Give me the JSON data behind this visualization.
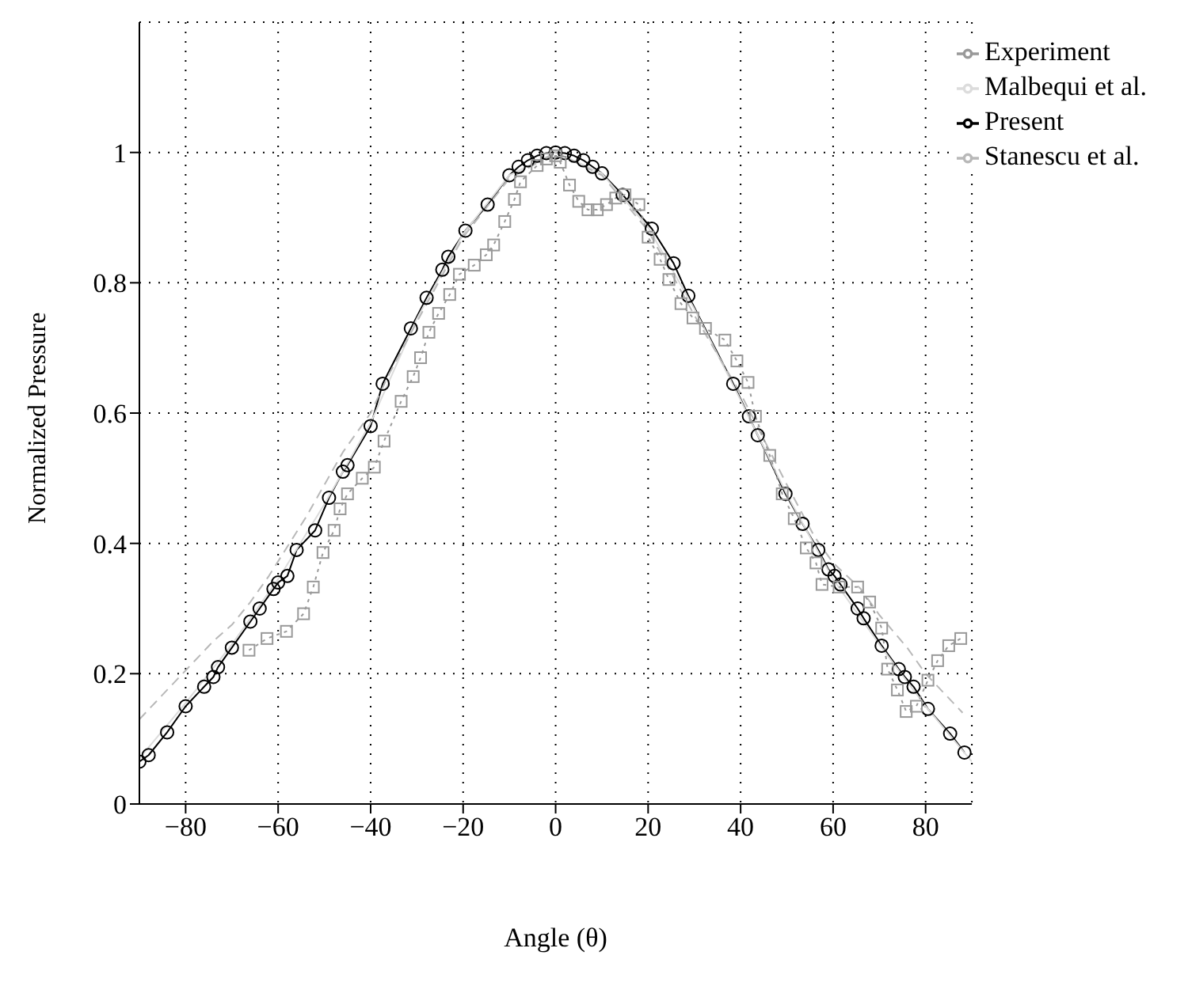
{
  "chart_data": {
    "type": "line",
    "xlabel": "Angle (θ)",
    "ylabel": "Normalized Pressure",
    "xlim": [
      -90,
      90
    ],
    "ylim": [
      0,
      1.2
    ],
    "xticks": [
      -80,
      -60,
      -40,
      -20,
      0,
      20,
      40,
      60,
      80
    ],
    "yticks": [
      0,
      0.2,
      0.4,
      0.6,
      0.8,
      1
    ],
    "grid": true,
    "legend": "top right",
    "series": [
      {
        "name": "Present",
        "color": "#000000",
        "marker": "circle",
        "line_style": "solid",
        "x": [
          -90,
          -88,
          -84,
          -80,
          -76,
          -74,
          -73,
          -70,
          -66,
          -64,
          -61,
          -60,
          -58,
          -56,
          -52,
          -49,
          -46,
          -45,
          -40,
          -37.4,
          -31.3,
          -27.9,
          -24.5,
          -23.2,
          -19.5,
          -14.7,
          -10,
          -8,
          -6,
          -4,
          -2,
          0,
          2,
          4,
          6,
          8,
          10,
          14.5,
          20.8,
          25.5,
          28.7,
          38.4,
          41.8,
          43.7,
          49.7,
          53.4,
          56.8,
          59,
          60.3,
          61.6,
          65.3,
          66.6,
          70.5,
          74.2,
          75.5,
          77.4,
          80.5,
          85.3,
          88.4
        ],
        "values": [
          0.065,
          0.075,
          0.11,
          0.15,
          0.18,
          0.195,
          0.21,
          0.24,
          0.28,
          0.3,
          0.33,
          0.34,
          0.35,
          0.39,
          0.42,
          0.47,
          0.51,
          0.52,
          0.58,
          0.645,
          0.73,
          0.777,
          0.82,
          0.84,
          0.88,
          0.92,
          0.965,
          0.978,
          0.988,
          0.995,
          0.999,
          1,
          0.999,
          0.995,
          0.988,
          0.978,
          0.968,
          0.935,
          0.883,
          0.83,
          0.78,
          0.645,
          0.595,
          0.566,
          0.476,
          0.43,
          0.39,
          0.36,
          0.35,
          0.337,
          0.3,
          0.285,
          0.243,
          0.207,
          0.195,
          0.18,
          0.146,
          0.108,
          0.079
        ]
      },
      {
        "name": "Malbequi et al.",
        "color": "#dcdcdc",
        "marker": "none",
        "line_style": "solid",
        "x": [
          -90,
          -80,
          -70,
          -60,
          -50,
          -40,
          -30,
          -20,
          -10,
          0,
          10,
          20,
          30,
          40,
          50,
          60,
          70,
          80,
          90
        ],
        "values": [
          0.07,
          0.155,
          0.245,
          0.345,
          0.46,
          0.585,
          0.745,
          0.875,
          0.965,
          1,
          0.968,
          0.885,
          0.76,
          0.62,
          0.475,
          0.345,
          0.245,
          0.15,
          0.065
        ]
      },
      {
        "name": "Stanescu et al.",
        "color": "#b8b8b8",
        "marker": "none",
        "line_style": "dashed",
        "x": [
          -90,
          -86,
          -80,
          -74,
          -70,
          -66,
          -62,
          -58,
          -54,
          -50,
          -46,
          -40,
          -36,
          -30,
          -20,
          -10,
          0,
          10,
          20,
          30,
          40,
          50,
          56,
          60,
          66,
          70,
          76,
          80,
          84,
          88
        ],
        "values": [
          0.13,
          0.16,
          0.205,
          0.25,
          0.275,
          0.31,
          0.35,
          0.395,
          0.44,
          0.49,
          0.54,
          0.6,
          0.66,
          0.74,
          0.87,
          0.96,
          1,
          0.965,
          0.88,
          0.75,
          0.63,
          0.49,
          0.41,
          0.37,
          0.33,
          0.29,
          0.24,
          0.2,
          0.17,
          0.14
        ]
      },
      {
        "name": "Experiment",
        "color": "#999999",
        "marker": "square",
        "line_style": "dotted",
        "x": [
          -66.3,
          -62.4,
          -58.2,
          -54.5,
          -52.4,
          -50.3,
          -47.9,
          -46.6,
          -45,
          -41.8,
          -39.2,
          -37.1,
          -33.4,
          -30.8,
          -29.2,
          -27.4,
          -25.3,
          -22.9,
          -20.8,
          -17.6,
          -15,
          -13.4,
          -11,
          -8.9,
          -7.6,
          -4,
          -2,
          0,
          1,
          3,
          5,
          7,
          9,
          11,
          13,
          15,
          18,
          20,
          22.6,
          24.5,
          27.1,
          29.7,
          32.4,
          36.6,
          39.2,
          41.6,
          43.2,
          46.3,
          49,
          51.6,
          54.2,
          56.3,
          57.6,
          61.3,
          65.3,
          67.9,
          70.5,
          71.8,
          73.9,
          75.8,
          78,
          80.5,
          82.6,
          85,
          87.6
        ],
        "values": [
          0.236,
          0.254,
          0.265,
          0.292,
          0.333,
          0.386,
          0.42,
          0.453,
          0.476,
          0.5,
          0.517,
          0.557,
          0.618,
          0.656,
          0.685,
          0.724,
          0.753,
          0.782,
          0.813,
          0.827,
          0.843,
          0.858,
          0.894,
          0.928,
          0.955,
          0.98,
          0.99,
          0.995,
          0.985,
          0.95,
          0.925,
          0.912,
          0.912,
          0.92,
          0.93,
          0.935,
          0.92,
          0.87,
          0.836,
          0.805,
          0.768,
          0.746,
          0.73,
          0.712,
          0.68,
          0.647,
          0.595,
          0.535,
          0.476,
          0.438,
          0.393,
          0.37,
          0.337,
          0.333,
          0.333,
          0.31,
          0.27,
          0.207,
          0.175,
          0.142,
          0.15,
          0.19,
          0.22,
          0.243,
          0.254
        ]
      }
    ]
  }
}
